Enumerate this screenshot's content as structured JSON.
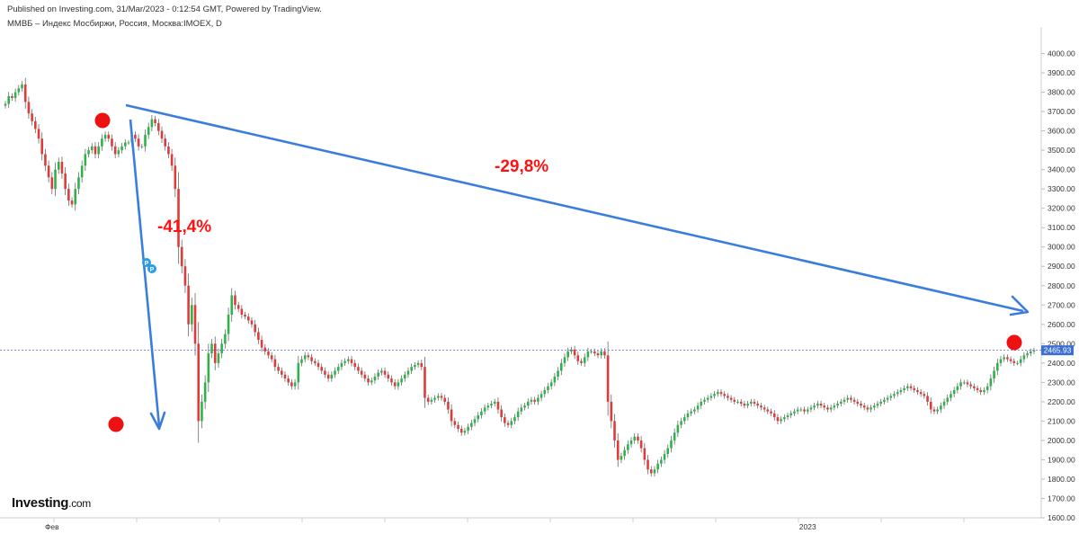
{
  "header": {
    "published": "Published on Investing.com, 31/Mar/2023 - 0:12:54 GMT, Powered by TradingView.",
    "symbol": "ММВБ – Индекс Мосбиржи, Россия, Москва:IMOEX, D"
  },
  "logo": {
    "main": "Investing",
    "suffix": ".com"
  },
  "colors": {
    "up": "#2db34a",
    "down": "#e03a3a",
    "annotation": "#ff1111",
    "arrow": "#3b7ddd",
    "price_label": "#3b6fd6"
  },
  "chart_data": {
    "type": "candlestick",
    "ylim": [
      1600,
      4100
    ],
    "y_ticks": [
      "4000.00",
      "3900.00",
      "3800.00",
      "3700.00",
      "3600.00",
      "3500.00",
      "3400.00",
      "3300.00",
      "3200.00",
      "3100.00",
      "3000.00",
      "2900.00",
      "2800.00",
      "2700.00",
      "2600.00",
      "2500.00",
      "2400.00",
      "2300.00",
      "2200.00",
      "2100.00",
      "2000.00",
      "1900.00",
      "1800.00",
      "1700.00",
      "1600.00"
    ],
    "x_labels": [
      {
        "label": "Фев",
        "period": 14
      },
      {
        "label": "2023",
        "period": 241
      }
    ],
    "last_price": 2465.93,
    "last_price_label": "2465.93",
    "periods": 308,
    "closes": [
      3740,
      3780,
      3770,
      3800,
      3820,
      3840,
      3750,
      3690,
      3650,
      3610,
      3560,
      3480,
      3420,
      3360,
      3300,
      3400,
      3440,
      3380,
      3300,
      3240,
      3220,
      3300,
      3360,
      3420,
      3480,
      3500,
      3520,
      3480,
      3520,
      3560,
      3580,
      3560,
      3520,
      3480,
      3500,
      3520,
      3540,
      3540,
      3580,
      3560,
      3520,
      3520,
      3580,
      3620,
      3660,
      3640,
      3600,
      3560,
      3520,
      3480,
      3420,
      3300,
      3000,
      2900,
      2800,
      2600,
      2700,
      2500,
      2100,
      2200,
      2300,
      2450,
      2500,
      2400,
      2450,
      2500,
      2550,
      2650,
      2750,
      2700,
      2680,
      2650,
      2640,
      2620,
      2600,
      2560,
      2520,
      2480,
      2460,
      2440,
      2420,
      2380,
      2360,
      2340,
      2320,
      2300,
      2280,
      2300,
      2400,
      2420,
      2440,
      2430,
      2410,
      2400,
      2380,
      2360,
      2340,
      2320,
      2340,
      2360,
      2380,
      2400,
      2410,
      2420,
      2400,
      2380,
      2360,
      2340,
      2320,
      2300,
      2310,
      2330,
      2350,
      2360,
      2340,
      2320,
      2300,
      2280,
      2300,
      2320,
      2340,
      2360,
      2380,
      2390,
      2400,
      2380,
      2220,
      2200,
      2210,
      2220,
      2230,
      2220,
      2200,
      2160,
      2100,
      2080,
      2060,
      2040,
      2050,
      2070,
      2090,
      2110,
      2130,
      2150,
      2170,
      2180,
      2190,
      2200,
      2160,
      2120,
      2090,
      2080,
      2100,
      2120,
      2150,
      2170,
      2180,
      2200,
      2210,
      2200,
      2220,
      2240,
      2260,
      2280,
      2300,
      2330,
      2360,
      2400,
      2430,
      2460,
      2470,
      2440,
      2410,
      2400,
      2430,
      2460,
      2460,
      2450,
      2440,
      2460,
      2440,
      2200,
      2100,
      2000,
      1900,
      1920,
      1950,
      1980,
      2000,
      2020,
      2000,
      1960,
      1900,
      1850,
      1830,
      1850,
      1880,
      1900,
      1930,
      1960,
      2000,
      2040,
      2080,
      2100,
      2120,
      2140,
      2150,
      2160,
      2180,
      2200,
      2210,
      2220,
      2230,
      2240,
      2250,
      2240,
      2230,
      2220,
      2210,
      2200,
      2200,
      2190,
      2180,
      2190,
      2200,
      2190,
      2180,
      2170,
      2160,
      2150,
      2140,
      2120,
      2100,
      2110,
      2120,
      2130,
      2140,
      2150,
      2160,
      2160,
      2150,
      2160,
      2170,
      2180,
      2190,
      2180,
      2170,
      2160,
      2170,
      2180,
      2190,
      2200,
      2210,
      2220,
      2210,
      2200,
      2190,
      2180,
      2170,
      2160,
      2170,
      2180,
      2190,
      2200,
      2210,
      2220,
      2230,
      2240,
      2250,
      2260,
      2270,
      2280,
      2270,
      2260,
      2250,
      2240,
      2230,
      2200,
      2160,
      2150,
      2160,
      2180,
      2200,
      2220,
      2240,
      2260,
      2280,
      2300,
      2300,
      2290,
      2280,
      2270,
      2260,
      2250,
      2260,
      2280,
      2320,
      2360,
      2400,
      2420,
      2430,
      2420,
      2410,
      2400,
      2400,
      2420,
      2440,
      2450,
      2460,
      2466
    ]
  },
  "annotations": {
    "drop1": "-41,4%",
    "drop2": "-29,8%"
  }
}
